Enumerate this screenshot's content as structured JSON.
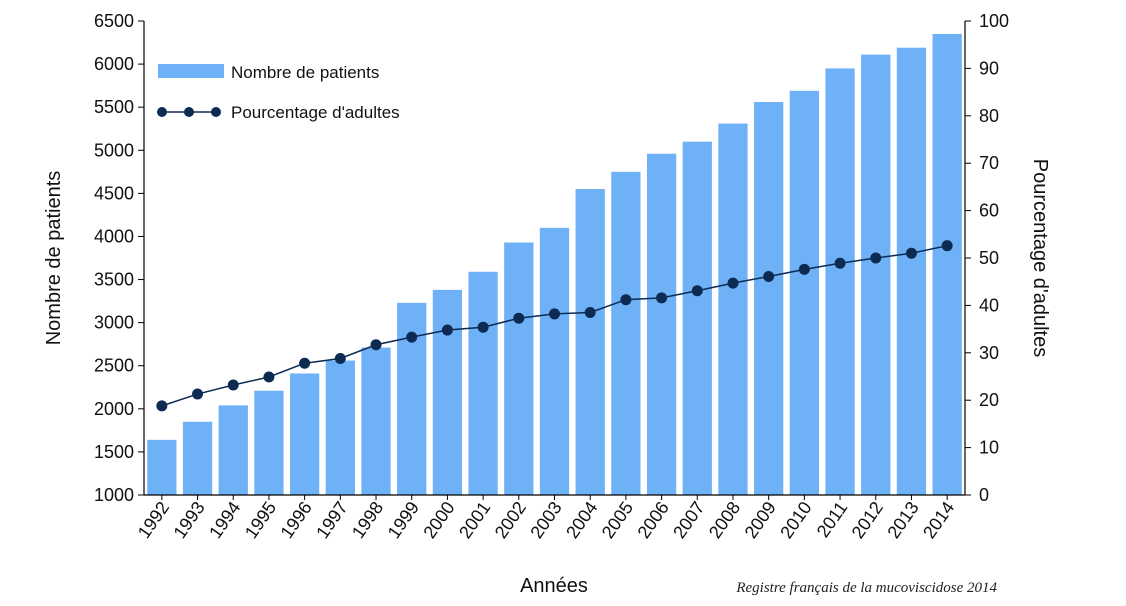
{
  "chart_data": {
    "type": "bar",
    "categories": [
      "1992",
      "1993",
      "1994",
      "1995",
      "1996",
      "1997",
      "1998",
      "1999",
      "2000",
      "2001",
      "2002",
      "2003",
      "2004",
      "2005",
      "2006",
      "2007",
      "2008",
      "2009",
      "2010",
      "2011",
      "2012",
      "2013",
      "2014"
    ],
    "series": [
      {
        "name": "Nombre de patients",
        "type": "bar",
        "axis": "left",
        "color": "#6EB1F7",
        "values": [
          1640,
          1850,
          2040,
          2210,
          2410,
          2560,
          2710,
          3230,
          3380,
          3590,
          3930,
          4100,
          4550,
          4750,
          4960,
          5100,
          5310,
          5560,
          5690,
          5950,
          6110,
          6190,
          6350
        ]
      },
      {
        "name": "Pourcentage d'adultes",
        "type": "line",
        "axis": "right",
        "color": "#0D2B52",
        "values": [
          18.8,
          21.3,
          23.2,
          24.9,
          27.8,
          28.8,
          31.7,
          33.3,
          34.8,
          35.4,
          37.3,
          38.2,
          38.5,
          41.2,
          41.6,
          43.1,
          44.7,
          46.1,
          47.6,
          48.9,
          50.0,
          51.0,
          52.6
        ]
      }
    ],
    "title": "",
    "xlabel": "Années",
    "ylabel": "Nombre de patients",
    "y2label": "Pourcentage d'adultes",
    "ylim": [
      1000,
      6500
    ],
    "y2lim": [
      0,
      100
    ],
    "yticks": [
      "1000",
      "1500",
      "2000",
      "2500",
      "3000",
      "3500",
      "4000",
      "4500",
      "5000",
      "5500",
      "6000",
      "6500"
    ],
    "y2ticks": [
      "0",
      "10",
      "20",
      "30",
      "40",
      "50",
      "60",
      "70",
      "80",
      "90",
      "100"
    ],
    "grid": false,
    "legend_position": "top-left",
    "source": "Registre français de la mucoviscidose 2014"
  }
}
